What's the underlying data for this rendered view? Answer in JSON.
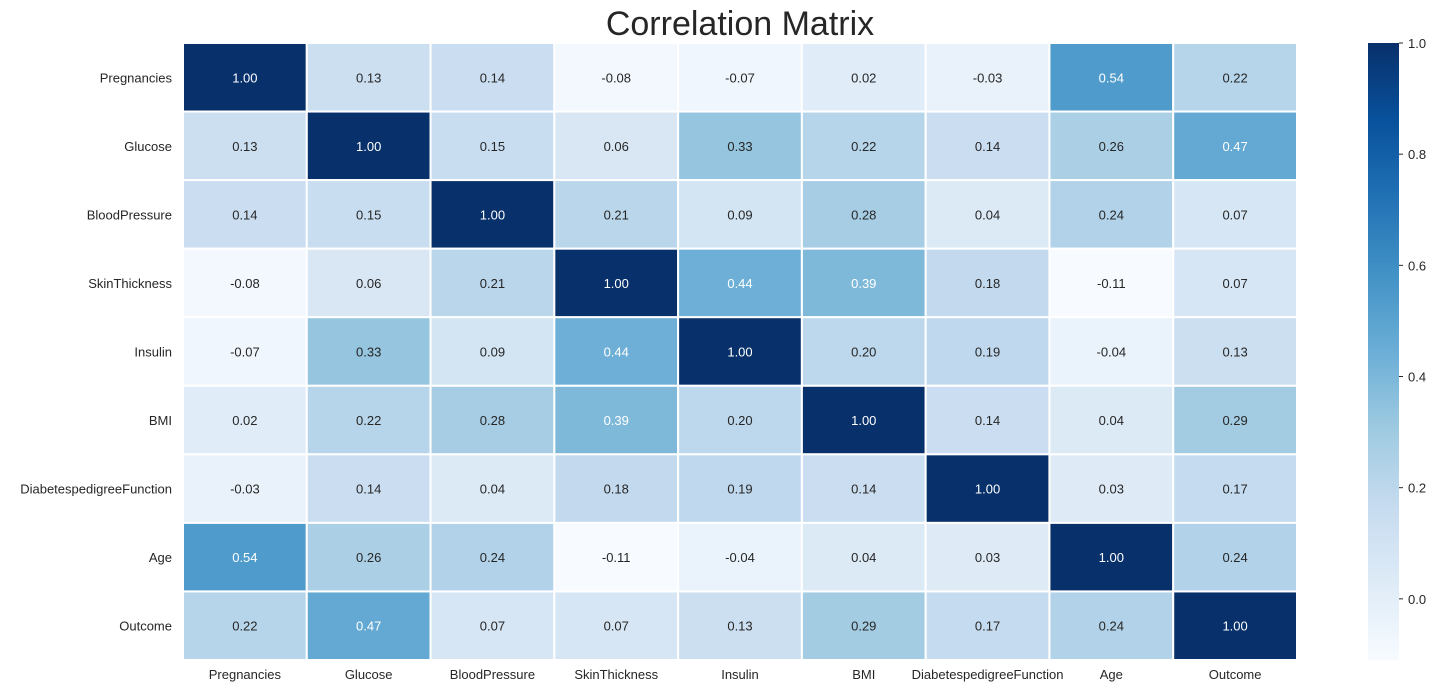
{
  "chart_data": {
    "type": "heatmap",
    "title": "Correlation Matrix",
    "xlabel": "",
    "ylabel": "",
    "colormap": "Blues",
    "vmin": -0.11,
    "vmax": 1.0,
    "annotation_format": "2 decimals",
    "row_labels": [
      "Pregnancies",
      "Glucose",
      "BloodPressure",
      "SkinThickness",
      "Insulin",
      "BMI",
      "DiabetespedigreeFunction",
      "Age",
      "Outcome"
    ],
    "col_labels": [
      "Pregnancies",
      "Glucose",
      "BloodPressure",
      "SkinThickness",
      "Insulin",
      "BMI",
      "DiabetespedigreeFunction",
      "Age",
      "Outcome"
    ],
    "values": [
      [
        1.0,
        0.13,
        0.14,
        -0.08,
        -0.07,
        0.02,
        -0.03,
        0.54,
        0.22
      ],
      [
        0.13,
        1.0,
        0.15,
        0.06,
        0.33,
        0.22,
        0.14,
        0.26,
        0.47
      ],
      [
        0.14,
        0.15,
        1.0,
        0.21,
        0.09,
        0.28,
        0.04,
        0.24,
        0.07
      ],
      [
        -0.08,
        0.06,
        0.21,
        1.0,
        0.44,
        0.39,
        0.18,
        -0.11,
        0.07
      ],
      [
        -0.07,
        0.33,
        0.09,
        0.44,
        1.0,
        0.2,
        0.19,
        -0.04,
        0.13
      ],
      [
        0.02,
        0.22,
        0.28,
        0.39,
        0.2,
        1.0,
        0.14,
        0.04,
        0.29
      ],
      [
        -0.03,
        0.14,
        0.04,
        0.18,
        0.19,
        0.14,
        1.0,
        0.03,
        0.17
      ],
      [
        0.54,
        0.26,
        0.24,
        -0.11,
        -0.04,
        0.04,
        0.03,
        1.0,
        0.24
      ],
      [
        0.22,
        0.47,
        0.07,
        0.07,
        0.13,
        0.29,
        0.17,
        0.24,
        1.0
      ]
    ],
    "colorbar": {
      "ticks": [
        0.0,
        0.2,
        0.4,
        0.6,
        0.8,
        1.0
      ],
      "tick_labels": [
        "0.0",
        "0.2",
        "0.4",
        "0.6",
        "0.8",
        "1.0"
      ]
    },
    "grid": true,
    "cell_border_color": "#ffffff",
    "text_color_light": "#ffffff",
    "text_color_dark": "#262626"
  }
}
